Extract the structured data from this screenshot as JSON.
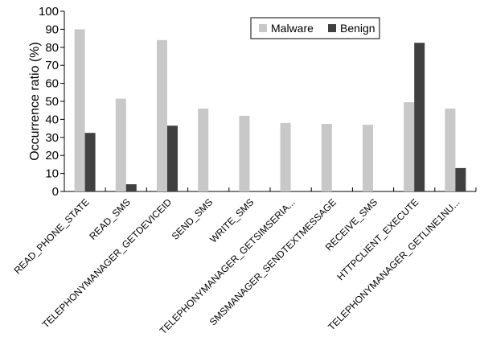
{
  "chart_data": {
    "type": "bar",
    "ylabel": "Occurrence ratio (%)",
    "ylim": [
      0,
      100
    ],
    "yticks": [
      0,
      10,
      20,
      30,
      40,
      50,
      60,
      70,
      80,
      90,
      100
    ],
    "grid": false,
    "legend_position": "top-right",
    "categories": [
      "READ_PHONE_STATE",
      "READ_SMS",
      "TELEPHONYMANAGER_GETDEVICEID",
      "SEND_SMS",
      "WRITE_SMS",
      "TELEPHONYMANAGER_GETSIMSERIA...",
      "SMSMANAGER_SENDTEXTMESSAGE",
      "RECEIVE_SMS",
      "HTTPCLIENT_EXECUTE",
      "TELEPHONYMANAGER_GETLINE1NU..."
    ],
    "series": [
      {
        "name": "Malware",
        "color": "#c8c8c8",
        "values": [
          90,
          51.5,
          84,
          46,
          42,
          38,
          37.5,
          37,
          49.5,
          46
        ]
      },
      {
        "name": "Benign",
        "color": "#404040",
        "values": [
          32.5,
          4,
          36.5,
          0,
          0,
          0,
          0,
          0,
          82.5,
          13
        ]
      }
    ]
  }
}
